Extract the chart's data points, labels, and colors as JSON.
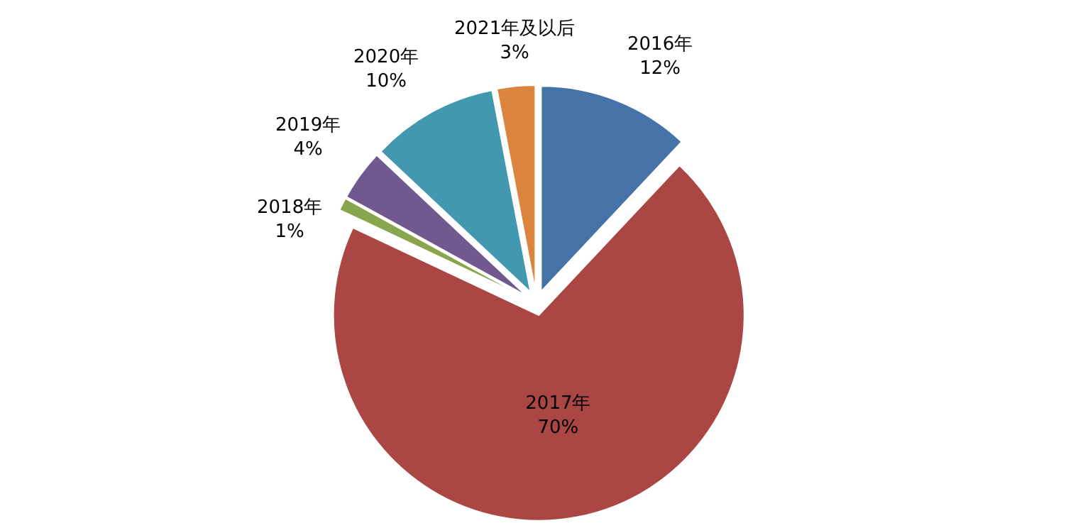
{
  "chart_data": {
    "type": "pie",
    "categories": [
      "2016年",
      "2017年",
      "2018年",
      "2019年",
      "2020年",
      "2021年及以后"
    ],
    "values": [
      12,
      70,
      1,
      4,
      10,
      3
    ],
    "colors": [
      "#4572a7",
      "#aa4643",
      "#89a54e",
      "#71588f",
      "#4198af",
      "#db843d"
    ],
    "value_labels": [
      "12%",
      "70%",
      "1%",
      "4%",
      "10%",
      "3%"
    ],
    "legend": false
  }
}
